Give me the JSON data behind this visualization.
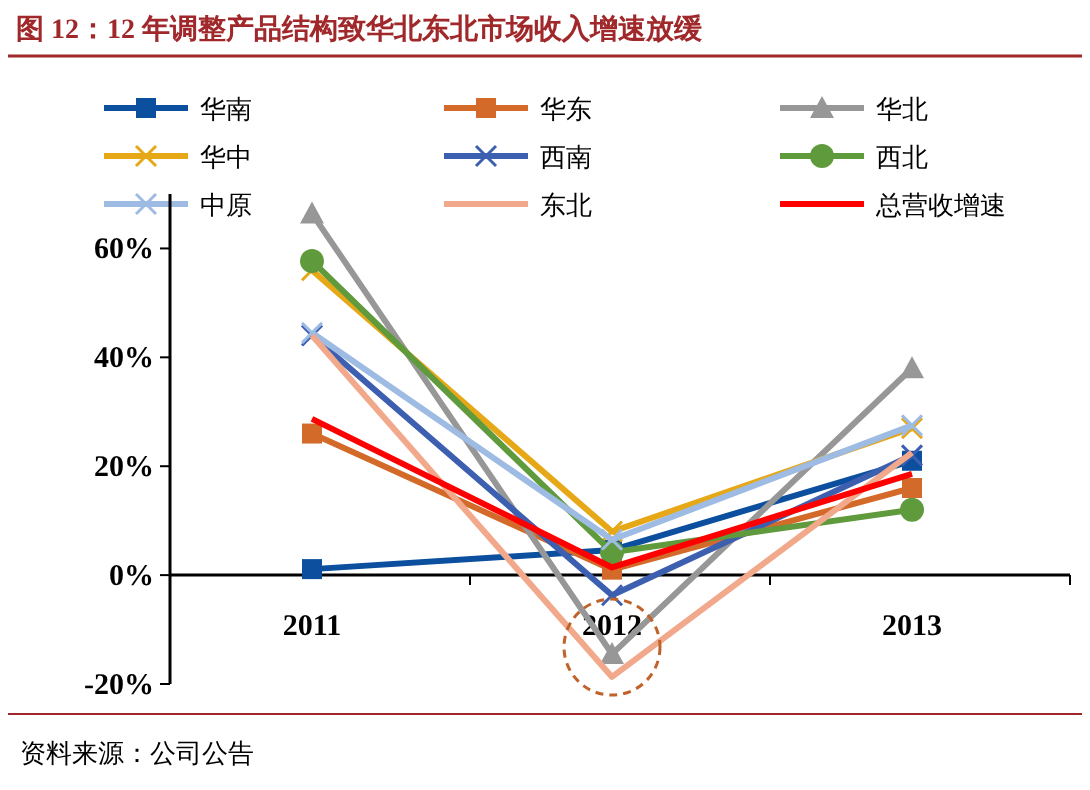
{
  "chart_data": {
    "type": "line",
    "title": "图 12：12 年调整产品结构致华北东北市场收入增速放缓",
    "annotations": [
      "资料来源：公司公告"
    ],
    "categories": [
      "2011",
      "2012",
      "2013"
    ],
    "series": [
      {
        "name": "华南",
        "color": "#0b4f9e",
        "marker": "square",
        "values": [
          1.1,
          4.6,
          21
        ]
      },
      {
        "name": "华东",
        "color": "#d46a2a",
        "marker": "square",
        "values": [
          26,
          1,
          16
        ]
      },
      {
        "name": "华北",
        "color": "#979797",
        "marker": "triangle",
        "values": [
          66.4,
          -14.5,
          38
        ]
      },
      {
        "name": "华中",
        "color": "#e6a817",
        "marker": "cross",
        "values": [
          56,
          8,
          27
        ]
      },
      {
        "name": "西南",
        "color": "#3d5fb0",
        "marker": "cross",
        "values": [
          44,
          -3.7,
          22
        ]
      },
      {
        "name": "西北",
        "color": "#5f9a3c",
        "marker": "circle",
        "values": [
          57.7,
          4.2,
          12
        ]
      },
      {
        "name": "中原",
        "color": "#9dbbe3",
        "marker": "cross",
        "values": [
          44.5,
          6.5,
          27.5
        ]
      },
      {
        "name": "东北",
        "color": "#f2a88a",
        "marker": "none",
        "values": [
          44,
          -18.7,
          22.5
        ]
      },
      {
        "name": "总营收增速",
        "color": "#ff0000",
        "marker": "none",
        "values": [
          28.7,
          1.4,
          18.6
        ]
      }
    ],
    "ylim": [
      -20,
      70
    ],
    "yticks": [
      {
        "value": -20,
        "label": "-20%"
      },
      {
        "value": 0,
        "label": "0%"
      },
      {
        "value": 20,
        "label": "20%"
      },
      {
        "value": 40,
        "label": "40%"
      },
      {
        "value": 60,
        "label": "60%"
      }
    ],
    "grid": false,
    "legend": "top",
    "line_style": "solid"
  }
}
